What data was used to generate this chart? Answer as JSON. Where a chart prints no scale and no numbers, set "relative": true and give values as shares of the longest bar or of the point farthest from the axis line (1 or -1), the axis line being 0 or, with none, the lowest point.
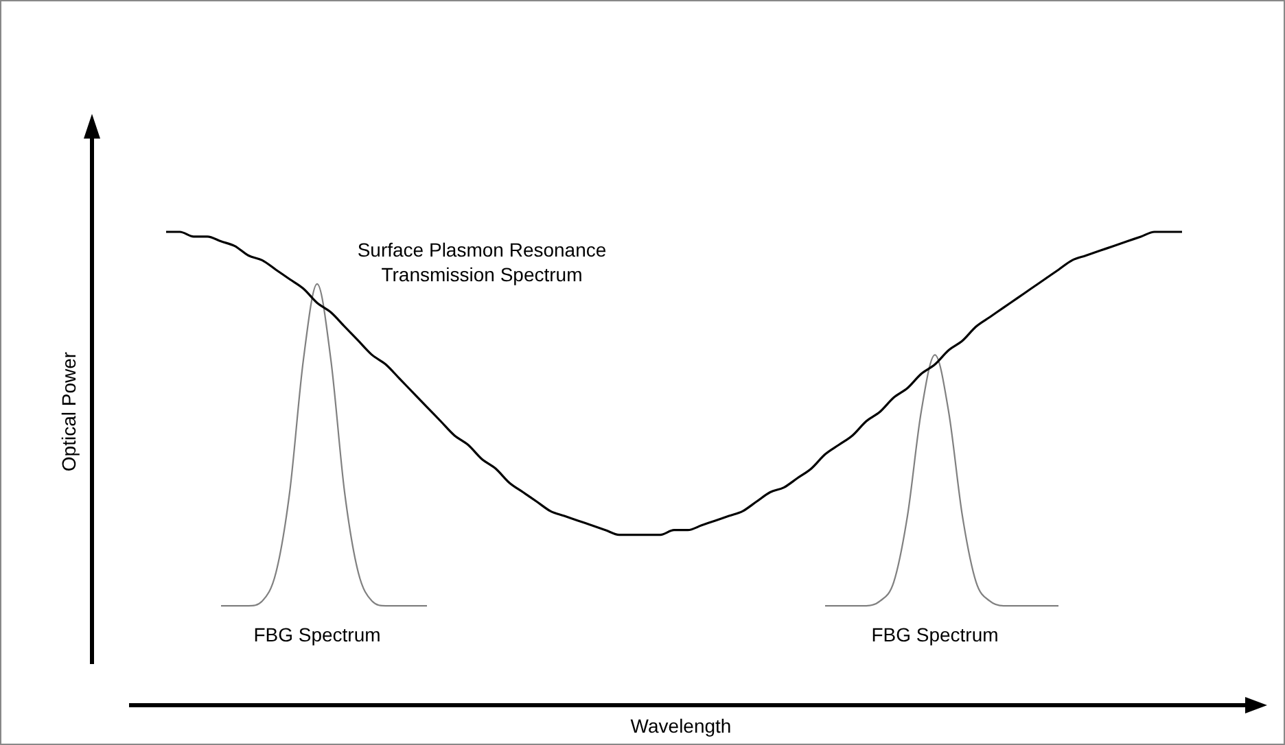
{
  "chart_data": {
    "type": "line",
    "relative": true,
    "xlabel": "Wavelength",
    "ylabel": "Optical Power",
    "marker": "none",
    "legend": false,
    "categories": [
      null,
      null,
      null,
      null,
      null,
      null,
      null,
      null,
      null,
      null,
      null,
      null,
      null,
      null,
      null,
      null,
      null,
      null,
      null,
      null,
      null,
      null,
      null,
      null,
      null,
      null,
      null,
      null,
      null,
      null,
      null,
      null,
      null,
      null,
      null,
      null,
      null,
      null,
      null,
      null,
      null,
      null,
      null,
      null,
      null,
      null,
      null,
      null,
      null,
      null,
      null,
      null,
      null,
      null,
      null,
      null,
      null,
      null,
      null,
      null,
      null,
      null,
      null,
      null,
      null,
      null,
      null,
      null,
      null,
      null,
      null,
      null,
      null,
      null,
      null,
      null
    ],
    "series": [
      {
        "name": "Surface Plasmon Resonance Transmission Spectrum",
        "color": "#000000",
        "values": [
          1.0,
          1.0,
          0.99,
          0.99,
          0.98,
          0.97,
          0.95,
          0.94,
          0.92,
          0.9,
          0.88,
          0.85,
          0.83,
          0.8,
          0.77,
          0.74,
          0.72,
          0.69,
          0.66,
          0.63,
          0.6,
          0.57,
          0.55,
          0.52,
          0.5,
          0.47,
          0.45,
          0.43,
          0.41,
          0.4,
          0.39,
          0.38,
          0.37,
          0.36,
          0.36,
          0.36,
          0.36,
          0.37,
          0.37,
          0.38,
          0.39,
          0.4,
          0.41,
          0.43,
          0.45,
          0.46,
          0.48,
          0.5,
          0.53,
          0.55,
          0.57,
          0.6,
          0.62,
          0.65,
          0.67,
          0.7,
          0.72,
          0.75,
          0.77,
          0.8,
          0.82,
          0.84,
          0.86,
          0.88,
          0.9,
          0.92,
          0.94,
          0.95,
          0.96,
          0.97,
          0.98,
          0.99,
          1.0,
          1.0,
          1.0,
          null
        ]
      },
      {
        "name": "FBG Spectrum",
        "color": "#808080",
        "values": [
          null,
          null,
          null,
          null,
          0.21,
          0.21,
          0.21,
          0.22,
          0.28,
          0.45,
          0.73,
          0.89,
          0.73,
          0.45,
          0.28,
          0.22,
          0.21,
          0.21,
          0.21,
          0.21,
          null,
          null,
          null,
          null,
          null,
          null,
          null,
          null,
          null,
          null,
          null,
          null,
          null,
          null,
          null,
          null,
          null,
          null,
          null,
          null,
          null,
          null,
          null,
          null,
          null,
          null,
          null,
          null,
          null,
          null,
          null,
          null,
          null,
          null,
          null,
          null,
          null,
          null,
          null,
          null,
          null,
          null,
          null,
          null,
          null,
          null,
          null,
          null,
          null,
          null,
          null,
          null,
          null,
          null,
          null,
          null
        ]
      },
      {
        "name": "FBG Spectrum",
        "color": "#808080",
        "values": [
          null,
          null,
          null,
          null,
          null,
          null,
          null,
          null,
          null,
          null,
          null,
          null,
          null,
          null,
          null,
          null,
          null,
          null,
          null,
          null,
          null,
          null,
          null,
          null,
          null,
          null,
          null,
          null,
          null,
          null,
          null,
          null,
          null,
          null,
          null,
          null,
          null,
          null,
          null,
          null,
          null,
          null,
          null,
          null,
          null,
          null,
          null,
          null,
          0.21,
          0.21,
          0.21,
          0.21,
          0.22,
          0.26,
          0.4,
          0.62,
          0.74,
          0.62,
          0.4,
          0.26,
          0.22,
          0.21,
          0.21,
          0.21,
          0.21,
          0.21,
          null,
          null,
          null,
          null,
          null,
          null,
          null,
          null,
          null,
          null
        ]
      }
    ]
  }
}
